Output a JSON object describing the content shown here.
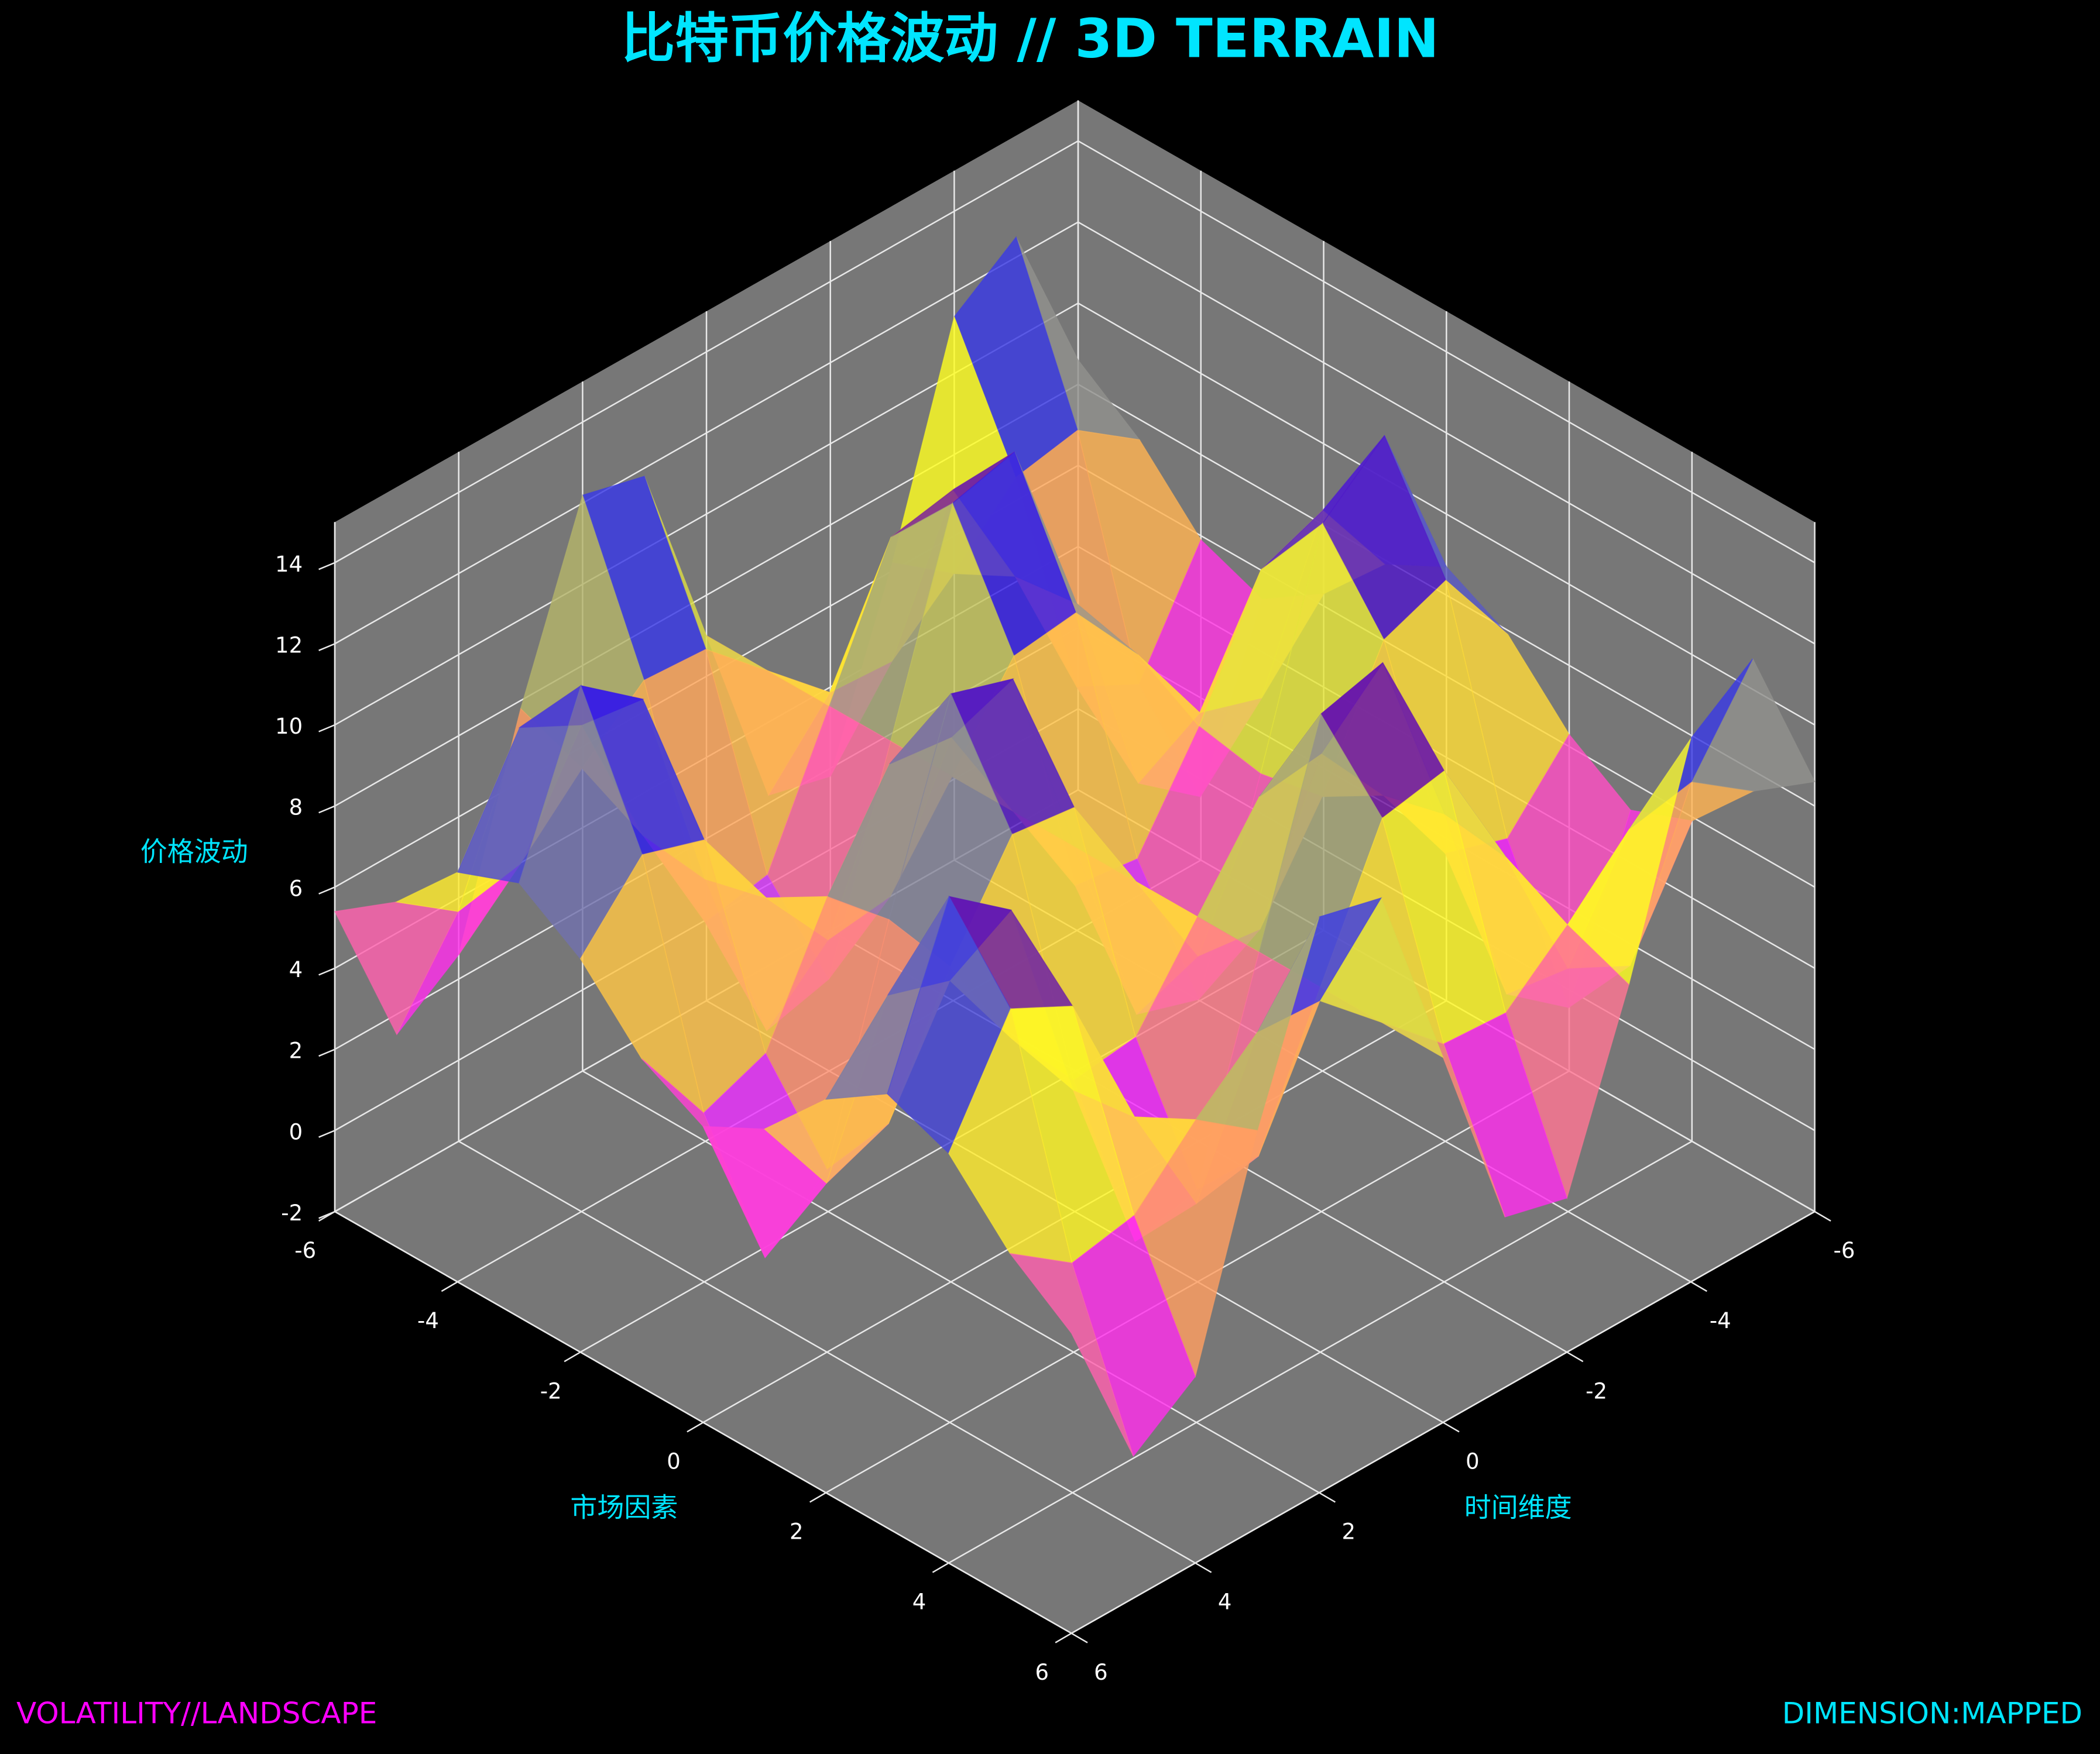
{
  "chart_data": {
    "type": "surface",
    "title": "比特币价格波动 // 3D TERRAIN",
    "xlabel": "时间维度",
    "ylabel": "市场因素",
    "zlabel": "价格波动",
    "footer_left": "VOLATILITY//LANDSCAPE",
    "footer_right": "DIMENSION:MAPPED",
    "x": [
      -6,
      -5,
      -4,
      -3,
      -2,
      -1,
      0,
      1,
      2,
      3,
      4,
      5,
      6
    ],
    "y": [
      -6,
      -5,
      -4,
      -3,
      -2,
      -1,
      0,
      1,
      2,
      3,
      4,
      5,
      6
    ],
    "z": [
      [
        8.6,
        7.5,
        5.9,
        5.3,
        6.3,
        7.9,
        8.7,
        7.9,
        6.3,
        5.3,
        5.9,
        7.5,
        8.6
      ],
      [
        12.5,
        8.6,
        3.2,
        1.3,
        4.6,
        10.1,
        12.8,
        10.1,
        4.6,
        1.3,
        3.2,
        8.6,
        12.5
      ],
      [
        11.4,
        8.3,
        4.0,
        2.5,
        5.1,
        9.5,
        11.5,
        9.5,
        5.1,
        2.5,
        4.0,
        8.3,
        11.4
      ],
      [
        6.2,
        6.8,
        7.6,
        7.8,
        7.4,
        6.5,
        6.2,
        6.5,
        7.4,
        7.8,
        7.6,
        6.8,
        6.2
      ],
      [
        1.8,
        5.5,
        10.6,
        12.4,
        9.3,
        4.1,
        1.5,
        4.1,
        9.3,
        12.4,
        10.6,
        5.5,
        1.8
      ],
      [
        2.2,
        5.6,
        10.3,
        12.0,
        9.1,
        4.3,
        2.0,
        4.3,
        9.1,
        12.0,
        10.3,
        5.6,
        2.2
      ],
      [
        7.0,
        7.0,
        7.0,
        7.0,
        7.0,
        7.0,
        7.0,
        7.0,
        7.0,
        7.0,
        7.0,
        7.0,
        7.0
      ],
      [
        11.8,
        8.4,
        3.7,
        2.0,
        4.9,
        9.7,
        12.0,
        9.7,
        4.9,
        2.0,
        3.7,
        8.4,
        11.8
      ],
      [
        12.2,
        8.5,
        3.4,
        1.6,
        4.7,
        9.9,
        12.5,
        9.9,
        4.7,
        1.6,
        3.4,
        8.5,
        12.2
      ],
      [
        7.8,
        7.2,
        6.4,
        6.2,
        6.6,
        7.5,
        7.8,
        7.5,
        6.6,
        6.2,
        6.4,
        7.2,
        7.8
      ],
      [
        2.6,
        5.7,
        10.0,
        11.5,
        8.9,
        4.5,
        2.5,
        4.5,
        8.9,
        11.5,
        10.0,
        5.7,
        2.6
      ],
      [
        1.5,
        5.4,
        10.8,
        12.7,
        9.4,
        3.9,
        1.2,
        3.9,
        9.4,
        12.7,
        10.8,
        5.4,
        1.5
      ],
      [
        5.4,
        6.5,
        8.1,
        8.7,
        7.7,
        6.1,
        5.3,
        6.1,
        7.7,
        8.7,
        8.1,
        6.5,
        5.4
      ]
    ],
    "colormap": [
      "#a070ff",
      "#ff20ff",
      "#ffa060",
      "#ffff20",
      "#2020ff",
      "#ff0000"
    ],
    "xlim": [
      -6,
      6
    ],
    "ylim": [
      -6,
      6
    ],
    "zlim": [
      -2,
      15
    ],
    "xticks": [
      -6,
      -4,
      -2,
      0,
      2,
      4,
      6
    ],
    "yticks": [
      -6,
      -4,
      -2,
      0,
      2,
      4,
      6
    ],
    "zticks": [
      -2,
      0,
      2,
      4,
      6,
      8,
      10,
      12,
      14
    ],
    "pane_color": "#777777",
    "grid": true
  }
}
